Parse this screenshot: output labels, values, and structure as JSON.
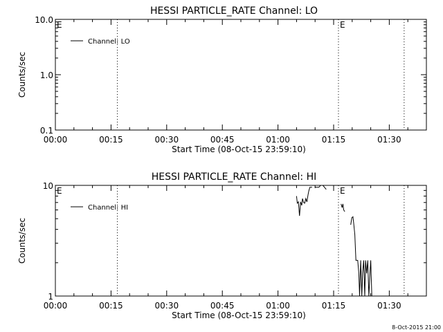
{
  "footer_date": "8-Oct-2015 21:00",
  "chart_data": [
    {
      "type": "line",
      "title": "HESSI PARTICLE_RATE Channel: LO",
      "xlabel": "Start Time (08-Oct-15 23:59:10)",
      "ylabel": "Counts/sec",
      "xlim_min": [
        0,
        100
      ],
      "ylim": [
        0.1,
        10.0
      ],
      "yscale": "log",
      "x_ticks": [
        {
          "value": 0,
          "label": "00:00"
        },
        {
          "value": 15,
          "label": "00:15"
        },
        {
          "value": 30,
          "label": "00:30"
        },
        {
          "value": 45,
          "label": "00:45"
        },
        {
          "value": 60,
          "label": "01:00"
        },
        {
          "value": 75,
          "label": "01:15"
        },
        {
          "value": 90,
          "label": "01:30"
        }
      ],
      "y_ticks": [
        {
          "value": 0.1,
          "label": "0.1"
        },
        {
          "value": 1.0,
          "label": "1.0"
        },
        {
          "value": 10.0,
          "label": "10.0"
        }
      ],
      "event_lines": [
        {
          "x": 16.7,
          "label": ""
        },
        {
          "x": 76.3,
          "label": "E"
        },
        {
          "x": 94.0,
          "label": ""
        }
      ],
      "edge_label": "E",
      "legend": "top-left",
      "series": [
        {
          "name": "Channel: LO",
          "x": [],
          "y": []
        }
      ]
    },
    {
      "type": "line",
      "title": "HESSI PARTICLE_RATE Channel: HI",
      "xlabel": "Start Time (08-Oct-15 23:59:10)",
      "ylabel": "Counts/sec",
      "xlim_min": [
        0,
        100
      ],
      "ylim": [
        1,
        10
      ],
      "yscale": "log",
      "x_ticks": [
        {
          "value": 0,
          "label": "00:00"
        },
        {
          "value": 15,
          "label": "00:15"
        },
        {
          "value": 30,
          "label": "00:30"
        },
        {
          "value": 45,
          "label": "00:45"
        },
        {
          "value": 60,
          "label": "01:00"
        },
        {
          "value": 75,
          "label": "01:15"
        },
        {
          "value": 90,
          "label": "01:30"
        }
      ],
      "y_ticks": [
        {
          "value": 1,
          "label": "1"
        },
        {
          "value": 10,
          "label": "10"
        }
      ],
      "event_lines": [
        {
          "x": 16.7,
          "label": ""
        },
        {
          "x": 76.3,
          "label": "E"
        },
        {
          "x": 94.0,
          "label": ""
        }
      ],
      "edge_label": "E",
      "legend": "top-left",
      "series": [
        {
          "name": "Channel: HI",
          "segments": [
            {
              "x": [
                65.0,
                65.2,
                65.5,
                65.8,
                66.1,
                66.4,
                66.6,
                66.9,
                67.2,
                67.5,
                67.8,
                68.1,
                68.3,
                68.6,
                68.9,
                69.2
              ],
              "y": [
                8.0,
                6.9,
                7.1,
                5.3,
                7.1,
                6.6,
                7.6,
                7.0,
                6.9,
                7.6,
                7.1,
                8.2,
                8.9,
                9.6,
                9.6,
                9.6
              ]
            },
            {
              "x": [
                70.0,
                71.0,
                71.5,
                72.1,
                73.0
              ],
              "y": [
                9.6,
                9.6,
                10.0,
                10.0,
                9.2
              ]
            },
            {
              "x": [
                77.0,
                77.3,
                77.5,
                77.7,
                78.0
              ],
              "y": [
                6.8,
                6.3,
                6.8,
                6.0,
                5.8
              ]
            },
            {
              "x": [
                79.6,
                79.9,
                80.2,
                80.4,
                80.7,
                81.0,
                81.2,
                81.5,
                81.8,
                82.0,
                82.3,
                82.6,
                82.8,
                83.1,
                83.4,
                83.6,
                83.9,
                84.2,
                84.5,
                84.8,
                85.0,
                85.3
              ],
              "y": [
                4.4,
                5.1,
                5.2,
                4.6,
                3.6,
                2.1,
                2.1,
                2.1,
                1.6,
                1.0,
                2.1,
                1.0,
                1.6,
                2.1,
                1.0,
                2.1,
                1.6,
                2.1,
                1.0,
                1.6,
                2.1,
                1.0
              ]
            }
          ]
        }
      ]
    }
  ]
}
